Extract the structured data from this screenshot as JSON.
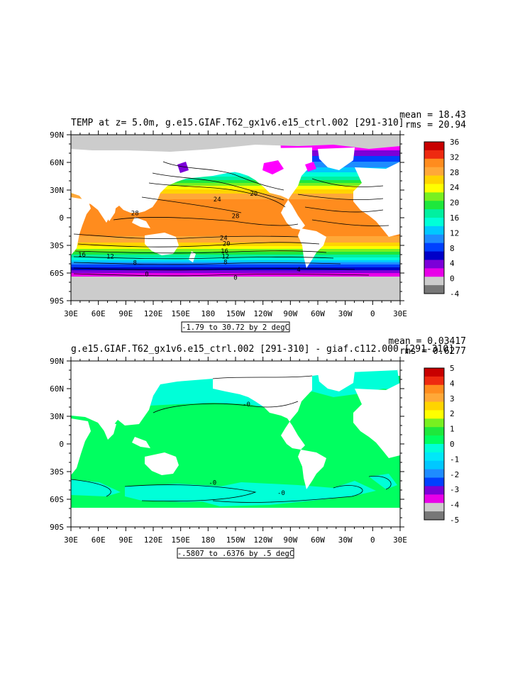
{
  "panels": [
    {
      "title": "TEMP at z=   5.0m, g.e15.GIAF.T62_gx1v6.e15_ctrl.002 [291-310]",
      "mean": "mean = 18.43",
      "rms": "rms = 20.94",
      "contour_info": "-1.79 to 30.72 by 2 degC",
      "x_ticks": [
        "30E",
        "60E",
        "90E",
        "120E",
        "150E",
        "180",
        "150W",
        "120W",
        "90W",
        "60W",
        "30W",
        "0",
        "30E"
      ],
      "y_ticks": [
        "90N",
        "60N",
        "30N",
        "0",
        "30S",
        "60S",
        "90S"
      ],
      "colorbar": {
        "labels": [
          "36",
          "32",
          "28",
          "24",
          "20",
          "16",
          "12",
          "8",
          "4",
          "0",
          "-4"
        ],
        "colors": [
          "#c80000",
          "#ee2a10",
          "#ff8c1e",
          "#ffa838",
          "#ffd400",
          "#ffff00",
          "#78f020",
          "#1ee83c",
          "#00f0a0",
          "#00ffd8",
          "#00c8ff",
          "#1e8cff",
          "#0040ff",
          "#0000c8",
          "#7c00d8",
          "#e800e8",
          "#cccccc",
          "#777777"
        ]
      },
      "contour_labels": [
        {
          "text": "28",
          "lon": 100,
          "lat": 5
        },
        {
          "text": "28",
          "lon": 210,
          "lat": 2
        },
        {
          "text": "24",
          "lon": 190,
          "lat": 20
        },
        {
          "text": "20",
          "lon": 230,
          "lat": 26
        },
        {
          "text": "24",
          "lon": 197,
          "lat": -22
        },
        {
          "text": "20",
          "lon": 200,
          "lat": -28
        },
        {
          "text": "16",
          "lon": 198,
          "lat": -36
        },
        {
          "text": "12",
          "lon": 199,
          "lat": -42
        },
        {
          "text": "8",
          "lon": 199,
          "lat": -48
        },
        {
          "text": "16",
          "lon": 42,
          "lat": -40
        },
        {
          "text": "12",
          "lon": 73,
          "lat": -42
        },
        {
          "text": "8",
          "lon": 100,
          "lat": -49
        },
        {
          "text": "4",
          "lon": 279,
          "lat": -56
        },
        {
          "text": "0",
          "lon": 113,
          "lat": -61
        },
        {
          "text": "0",
          "lon": 210,
          "lat": -65
        }
      ]
    },
    {
      "title": "g.e15.GIAF.T62_gx1v6.e15_ctrl.002 [291-310] - giaf.c112.000 [291-310]",
      "mean": "mean = 0.03417",
      "rms": "rms = 0.6277",
      "contour_info": "-.5807 to .6376 by .5 degC",
      "x_ticks": [
        "30E",
        "60E",
        "90E",
        "120E",
        "150E",
        "180",
        "150W",
        "120W",
        "90W",
        "60W",
        "30W",
        "0",
        "30E"
      ],
      "y_ticks": [
        "90N",
        "60N",
        "30N",
        "0",
        "30S",
        "60S",
        "90S"
      ],
      "colorbar": {
        "labels": [
          "5",
          "4",
          "3",
          "2",
          "1",
          "0",
          "-1",
          "-2",
          "-3",
          "-4",
          "-5"
        ],
        "colors": [
          "#c80000",
          "#ee2a10",
          "#ff8c1e",
          "#ffa838",
          "#ffd400",
          "#ffff00",
          "#78f020",
          "#1ee83c",
          "#00ff60",
          "#00ffd8",
          "#00e8f8",
          "#00c8ff",
          "#1e8cff",
          "#0040ff",
          "#7c00d8",
          "#e800e8",
          "#cccccc",
          "#777777"
        ]
      },
      "contour_labels": [
        {
          "text": "-0",
          "lon": 222,
          "lat": 43
        },
        {
          "text": "-0",
          "lon": 185,
          "lat": -42
        },
        {
          "text": "-0",
          "lon": 260,
          "lat": -53
        }
      ]
    }
  ]
}
